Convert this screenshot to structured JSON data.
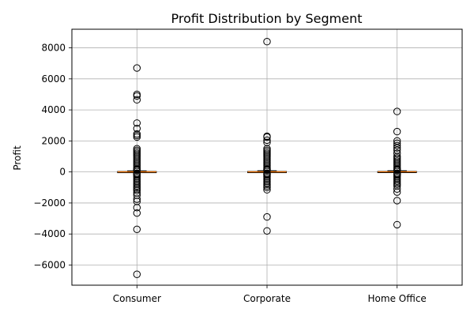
{
  "chart_data": {
    "type": "box",
    "title": "Profit Distribution by Segment",
    "xlabel": "",
    "ylabel": "Profit",
    "categories": [
      "Consumer",
      "Corporate",
      "Home Office"
    ],
    "ylim": [
      -7300,
      9200
    ],
    "yticks": [
      -6000,
      -4000,
      -2000,
      0,
      2000,
      4000,
      6000,
      8000
    ],
    "ytick_labels": [
      "−6000",
      "−4000",
      "−2000",
      "0",
      "2000",
      "4000",
      "6000",
      "8000"
    ],
    "grid": true,
    "colors": {
      "box": "#000000",
      "median": "#ff7f0e",
      "grid": "#b0b0b0"
    },
    "boxes": [
      {
        "name": "Consumer",
        "q1": 1.7,
        "median": 8.5,
        "q3": 29.5,
        "whisker_low": -39.0,
        "whisker_high": 71.0,
        "outliers": [
          6700,
          5000,
          4900,
          4650,
          3150,
          2800,
          2450,
          2350,
          2250,
          1500,
          1400,
          1300,
          1200,
          1100,
          1000,
          900,
          800,
          700,
          600,
          500,
          400,
          300,
          200,
          150,
          100,
          -100,
          -150,
          -200,
          -300,
          -400,
          -500,
          -600,
          -700,
          -800,
          -900,
          -1000,
          -1100,
          -1200,
          -1350,
          -1500,
          -1750,
          -1900,
          -2300,
          -2650,
          -3700,
          -6600
        ]
      },
      {
        "name": "Corporate",
        "q1": 1.8,
        "median": 9.2,
        "q3": 31.0,
        "whisker_low": -42.0,
        "whisker_high": 75.0,
        "outliers": [
          8400,
          2300,
          2250,
          2050,
          1900,
          1500,
          1400,
          1300,
          1200,
          1100,
          1000,
          900,
          800,
          700,
          600,
          500,
          400,
          300,
          200,
          150,
          100,
          -100,
          -150,
          -200,
          -300,
          -400,
          -500,
          -600,
          -700,
          -800,
          -900,
          -1000,
          -1150,
          -2900,
          -3800
        ]
      },
      {
        "name": "Home Office",
        "q1": 2.0,
        "median": 10.0,
        "q3": 33.0,
        "whisker_low": -41.0,
        "whisker_high": 78.0,
        "outliers": [
          3900,
          2600,
          2000,
          1850,
          1700,
          1550,
          1400,
          1200,
          1000,
          900,
          800,
          700,
          600,
          500,
          400,
          300,
          200,
          150,
          100,
          -100,
          -150,
          -200,
          -300,
          -400,
          -500,
          -600,
          -700,
          -800,
          -900,
          -1100,
          -1300,
          -1850,
          -3400
        ]
      }
    ]
  }
}
